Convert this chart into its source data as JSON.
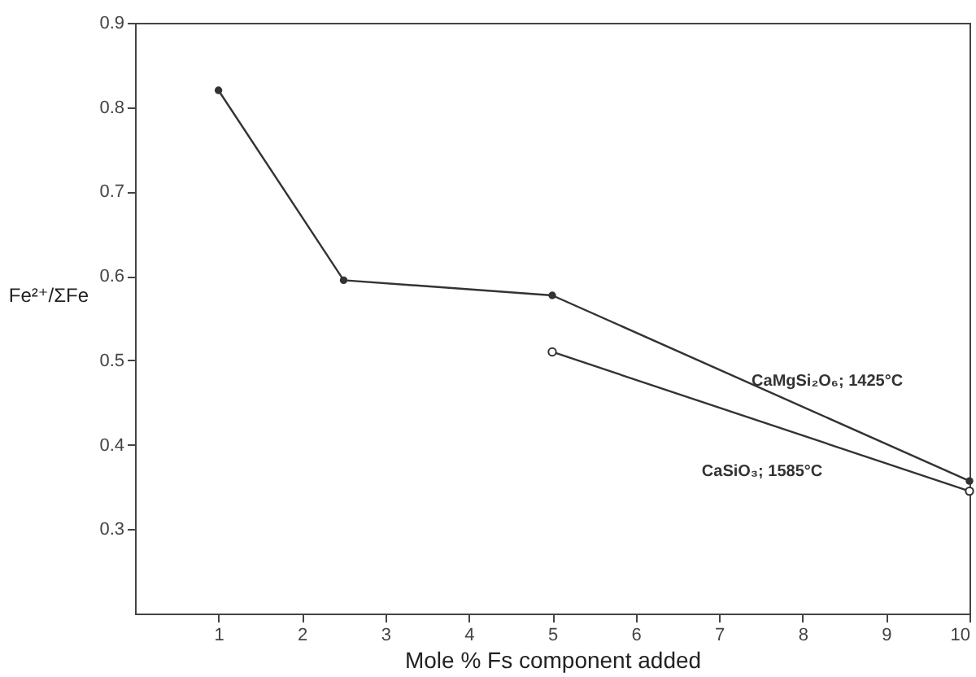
{
  "chart_data": {
    "type": "line",
    "xlabel": "Mole %  Fs component added",
    "ylabel": "Fe²⁺/ΣFe",
    "xlim": [
      0,
      10
    ],
    "xticks": [
      1,
      2,
      3,
      4,
      5,
      6,
      7,
      8,
      9,
      10
    ],
    "ylim": [
      0.2,
      0.9
    ],
    "yticks": [
      0.3,
      0.4,
      0.5,
      0.6,
      0.7,
      0.8,
      0.9
    ],
    "grid": false,
    "marker": "circle",
    "line_style": "solid",
    "series": [
      {
        "name": "CaMgSi₂O₆; 1425°C",
        "color": "#333333",
        "x": [
          1,
          2.5,
          5,
          10
        ],
        "values": [
          0.82,
          0.595,
          0.577,
          0.357
        ]
      },
      {
        "name": "CaSiO₃; 1585°C",
        "color": "#333333",
        "x": [
          5,
          10
        ],
        "values": [
          0.51,
          0.345
        ]
      }
    ]
  }
}
